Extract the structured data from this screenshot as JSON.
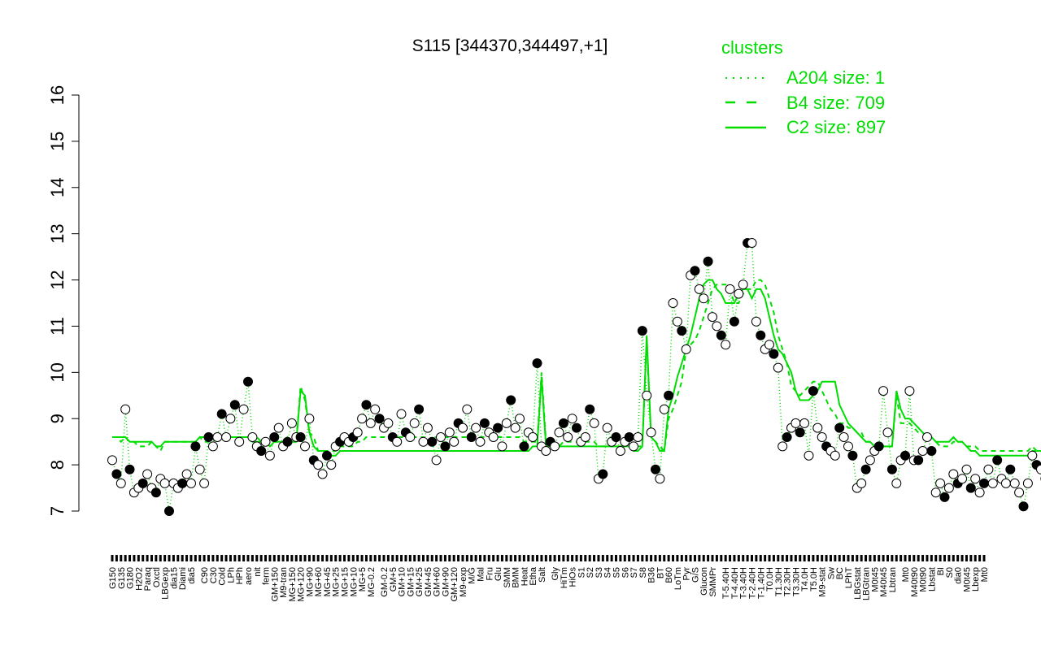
{
  "chart_data": {
    "type": "line",
    "title": "S115 [344370,344497,+1]",
    "xlabel": "",
    "ylabel": "",
    "ylim": [
      7,
      16
    ],
    "y_ticks": [
      7,
      8,
      9,
      10,
      11,
      12,
      13,
      14,
      15,
      16
    ],
    "grid": false,
    "legend": {
      "title": "clusters",
      "placement": "top-right",
      "color": "#00dd00",
      "entries": [
        {
          "label": "A204 size: 1",
          "style": "dotted"
        },
        {
          "label": "B4 size: 709",
          "style": "dashed"
        },
        {
          "label": "C2 size: 897",
          "style": "solid"
        }
      ]
    },
    "x_tick_labels": [
      "G150",
      "G135",
      "G180",
      "H2O2",
      "Paraq",
      "Oxctl",
      "LBGexp",
      "dia15",
      "Diami",
      "dia5",
      "C90",
      "C30",
      "Cold",
      "LPh",
      "HPh",
      "aero",
      "nit",
      "ferm",
      "GM+150",
      "M9-tran",
      "MG+150",
      "MG+120",
      "MG+90",
      "MG+60",
      "MG+45",
      "MG+25",
      "MG+15",
      "MG+10",
      "MG+5",
      "MG-0.2",
      "GM-0.2",
      "GM+5",
      "GM+10",
      "GM+15",
      "GM+25",
      "GM+45",
      "GM+60",
      "GM+90",
      "GM+120",
      "M9-exp",
      "M/G",
      "Mal",
      "Fru",
      "Glu",
      "SMM",
      "BMM",
      "Heat",
      "Etha",
      "Salt",
      "Gly",
      "HiTm",
      "HiOs",
      "S1",
      "S2",
      "S3",
      "S4",
      "S5",
      "S6",
      "S7",
      "S8",
      "B36",
      "BT",
      "B60",
      "LoTm",
      "Pyr",
      "G/S",
      "Glucon",
      "SMMPr",
      "T-5.40H",
      "T-4.40H",
      "T-3.40H",
      "T-2.40H",
      "T-1.40H",
      "T0.0H",
      "T1.30H",
      "T2.30H",
      "T3.30H",
      "T4.0H",
      "T5.0H",
      "M9-stat",
      "Sw",
      "BC",
      "LPhT",
      "LBGstat",
      "LBGtran",
      "M0t45",
      "M40t45",
      "Lbtran",
      "Mt0",
      "M40t90",
      "M0t90",
      "Lbstat",
      "BI",
      "S0",
      "dia0",
      "M0t45",
      "Lbexp",
      "Mt0"
    ],
    "x_count": 200,
    "series": [
      {
        "values": [
          8.1,
          7.8,
          7.6,
          9.2,
          7.9,
          7.4,
          7.5,
          7.6,
          7.8,
          7.5,
          7.4,
          7.7,
          7.6,
          7.0,
          7.6,
          7.5,
          7.6,
          7.8,
          7.6,
          8.4,
          7.9,
          7.6,
          8.6,
          8.4,
          8.6,
          9.1,
          8.6,
          9.0,
          9.3,
          8.5,
          9.2,
          9.8,
          8.6,
          8.4,
          8.3,
          8.5,
          8.2,
          8.6,
          8.8,
          8.4,
          8.5,
          8.9,
          8.6,
          8.6,
          8.4,
          9.0,
          8.1,
          8.0,
          7.8,
          8.2,
          8.0,
          8.4,
          8.5,
          8.6,
          8.5,
          8.6,
          8.7,
          9.0,
          9.3,
          8.9,
          9.2,
          9.0,
          8.8,
          8.9,
          8.6,
          8.5,
          9.1,
          8.7,
          8.6,
          8.9,
          9.2,
          8.5,
          8.8,
          8.5,
          8.1,
          8.6,
          8.4,
          8.7,
          8.5,
          8.9,
          8.8,
          9.2,
          8.6,
          8.8,
          8.5,
          8.9,
          8.7,
          8.6,
          8.8,
          8.4,
          8.9,
          9.4,
          8.8,
          9.0,
          8.4,
          8.7,
          8.6,
          10.2,
          8.4,
          8.3,
          8.5,
          8.4,
          8.7,
          8.9,
          8.6,
          9.0,
          8.8,
          8.5,
          8.6,
          9.2,
          8.9,
          7.7,
          7.8,
          8.8,
          8.5,
          8.6,
          8.3,
          8.5,
          8.6,
          8.4,
          8.6,
          10.9,
          9.5,
          8.7,
          7.9,
          7.7,
          9.2,
          9.5,
          11.5,
          11.1,
          10.9,
          10.5,
          12.1,
          12.2,
          11.8,
          11.6,
          12.4,
          11.2,
          11.0,
          10.8,
          10.6,
          11.8,
          11.1,
          11.7,
          11.9,
          12.8,
          12.8,
          11.1,
          10.8,
          10.5,
          10.6,
          10.4,
          10.1,
          8.4,
          8.6,
          8.8,
          8.9,
          8.7,
          8.9,
          8.2,
          9.6,
          8.8,
          8.6,
          8.4,
          8.3,
          8.2,
          8.8,
          8.6,
          8.4,
          8.2,
          7.5,
          7.6,
          7.9,
          8.1,
          8.3,
          8.4,
          9.6,
          8.7,
          7.9,
          7.6,
          8.1,
          8.2,
          9.6,
          8.1,
          8.1,
          8.3,
          8.6,
          8.3,
          7.4,
          7.6,
          7.3,
          7.5,
          7.8,
          7.6,
          7.7,
          7.9,
          7.5,
          7.7,
          7.4,
          7.6,
          7.9,
          7.6,
          8.1,
          7.7,
          7.6,
          7.9,
          7.6,
          7.4,
          7.1,
          7.6,
          8.2,
          8.0,
          7.9,
          7.7,
          8.4,
          8.3,
          8.2,
          7.9,
          7.4,
          8.0,
          7.5,
          7.8
        ]
      },
      {
        "values": [
          8.6,
          8.6,
          8.5,
          8.6,
          8.5,
          8.5,
          8.4,
          8.4,
          8.4,
          8.5,
          8.4,
          8.3,
          8.5,
          8.5,
          8.5,
          8.5,
          8.5,
          8.5,
          8.5,
          8.5,
          8.6,
          8.5,
          8.5,
          8.5,
          8.6,
          8.6,
          8.6,
          8.6,
          8.6,
          8.5,
          8.6,
          8.6,
          8.5,
          8.6,
          8.5,
          8.5,
          8.5,
          8.5,
          8.5,
          8.5,
          8.5,
          8.5,
          8.5,
          9.7,
          9.4,
          8.7,
          8.6,
          8.3,
          8.3,
          8.3,
          8.3,
          8.3,
          8.4,
          8.4,
          8.4,
          8.4,
          8.5,
          8.5,
          8.6,
          8.6,
          8.6,
          8.6,
          8.6,
          8.6,
          8.6,
          8.6,
          8.6,
          8.6,
          8.5,
          8.6,
          8.6,
          8.6,
          8.5,
          8.6,
          8.6,
          8.6,
          8.6,
          8.6,
          8.6,
          8.6,
          8.6,
          8.6,
          8.6,
          8.6,
          8.6,
          8.6,
          8.6,
          8.6,
          8.6,
          8.6,
          8.6,
          8.6,
          8.6,
          8.6,
          8.5,
          8.5,
          8.5,
          8.5,
          10.0,
          8.5,
          8.5,
          8.4,
          8.4,
          8.5,
          8.5,
          8.5,
          8.5,
          8.5,
          8.5,
          8.5,
          8.5,
          8.4,
          8.4,
          8.4,
          8.4,
          8.4,
          8.4,
          8.4,
          8.4,
          8.4,
          8.4,
          8.4,
          10.7,
          8.6,
          8.5,
          8.4,
          8.3,
          9.0,
          9.2,
          9.5,
          9.8,
          10.5,
          10.6,
          10.7,
          10.9,
          11.2,
          11.5,
          11.8,
          11.9,
          11.9,
          11.9,
          11.8,
          11.5,
          11.5,
          11.7,
          11.8,
          11.8,
          12.0,
          12.0,
          11.9,
          11.6,
          11.3,
          10.8,
          10.5,
          10.2,
          9.7,
          9.6,
          9.5,
          9.6,
          9.7,
          9.8,
          9.8,
          9.6,
          9.4,
          9.2,
          9.1,
          8.9,
          8.9,
          8.8,
          8.8,
          8.7,
          8.7,
          8.5,
          8.5,
          8.4,
          8.4,
          8.4,
          8.4,
          8.4,
          9.5,
          8.9,
          8.9,
          8.9,
          8.8,
          8.7,
          8.7,
          8.6,
          8.6,
          8.5,
          8.4,
          8.4,
          8.4,
          8.5,
          8.5,
          8.5,
          8.4,
          8.4,
          8.4,
          8.3,
          8.3,
          8.3,
          8.3,
          8.3,
          8.3,
          8.3,
          8.3,
          8.3,
          8.3,
          8.3,
          8.3,
          8.4,
          8.3,
          8.3,
          8.3,
          8.4,
          8.3,
          8.3,
          8.3,
          8.3,
          8.3,
          8.3,
          8.3,
          8.3,
          8.3
        ]
      },
      {
        "values": [
          8.6,
          8.6,
          8.6,
          8.6,
          8.5,
          8.5,
          8.5,
          8.5,
          8.5,
          8.5,
          8.4,
          8.4,
          8.5,
          8.5,
          8.5,
          8.5,
          8.5,
          8.5,
          8.5,
          8.5,
          8.6,
          8.6,
          8.6,
          8.6,
          8.6,
          8.6,
          8.6,
          8.6,
          8.6,
          8.6,
          8.6,
          8.6,
          8.5,
          8.5,
          8.5,
          8.5,
          8.4,
          8.5,
          8.5,
          8.5,
          8.6,
          8.5,
          8.5,
          9.6,
          9.5,
          8.7,
          8.4,
          8.3,
          8.3,
          8.3,
          8.2,
          8.2,
          8.3,
          8.3,
          8.3,
          8.3,
          8.3,
          8.3,
          8.3,
          8.3,
          8.3,
          8.3,
          8.3,
          8.3,
          8.3,
          8.3,
          8.3,
          8.3,
          8.3,
          8.3,
          8.3,
          8.3,
          8.3,
          8.3,
          8.3,
          8.3,
          8.3,
          8.3,
          8.3,
          8.3,
          8.3,
          8.3,
          8.3,
          8.3,
          8.3,
          8.3,
          8.3,
          8.3,
          8.3,
          8.3,
          8.3,
          8.3,
          8.3,
          8.3,
          8.3,
          8.3,
          8.4,
          8.4,
          9.9,
          8.4,
          8.4,
          8.4,
          8.4,
          8.4,
          8.4,
          8.4,
          8.4,
          8.4,
          8.4,
          8.4,
          8.4,
          8.4,
          8.4,
          8.4,
          8.4,
          8.4,
          8.4,
          8.4,
          8.4,
          8.3,
          8.3,
          8.4,
          10.8,
          8.6,
          8.5,
          8.3,
          8.3,
          9.2,
          9.5,
          9.9,
          10.2,
          10.5,
          10.8,
          11.2,
          11.6,
          11.9,
          12.0,
          12.0,
          11.8,
          11.7,
          11.5,
          11.5,
          11.5,
          11.7,
          11.8,
          11.8,
          11.6,
          11.8,
          11.8,
          11.6,
          11.2,
          10.8,
          10.5,
          10.4,
          10.2,
          10.0,
          9.6,
          9.4,
          9.4,
          9.4,
          9.5,
          9.6,
          9.8,
          9.8,
          9.8,
          9.8,
          9.3,
          9.1,
          8.9,
          8.8,
          8.7,
          8.6,
          8.5,
          8.5,
          8.4,
          8.4,
          8.4,
          8.4,
          8.4,
          9.6,
          9.2,
          9.0,
          9.0,
          8.9,
          8.8,
          8.7,
          8.6,
          8.6,
          8.5,
          8.5,
          8.5,
          8.5,
          8.6,
          8.5,
          8.5,
          8.4,
          8.3,
          8.3,
          8.2,
          8.2,
          8.2,
          8.2,
          8.2,
          8.2,
          8.2,
          8.2,
          8.2,
          8.2,
          8.2,
          8.2,
          8.3,
          8.3,
          8.3,
          8.3,
          8.4,
          8.4,
          8.3,
          8.3,
          8.3,
          8.3,
          8.3,
          8.4,
          8.4,
          8.4
        ]
      }
    ]
  },
  "colors": {
    "line": "#00dd00",
    "axis": "#000000",
    "point_fill_open": "#ffffff",
    "point_fill_filled": "#000000"
  }
}
